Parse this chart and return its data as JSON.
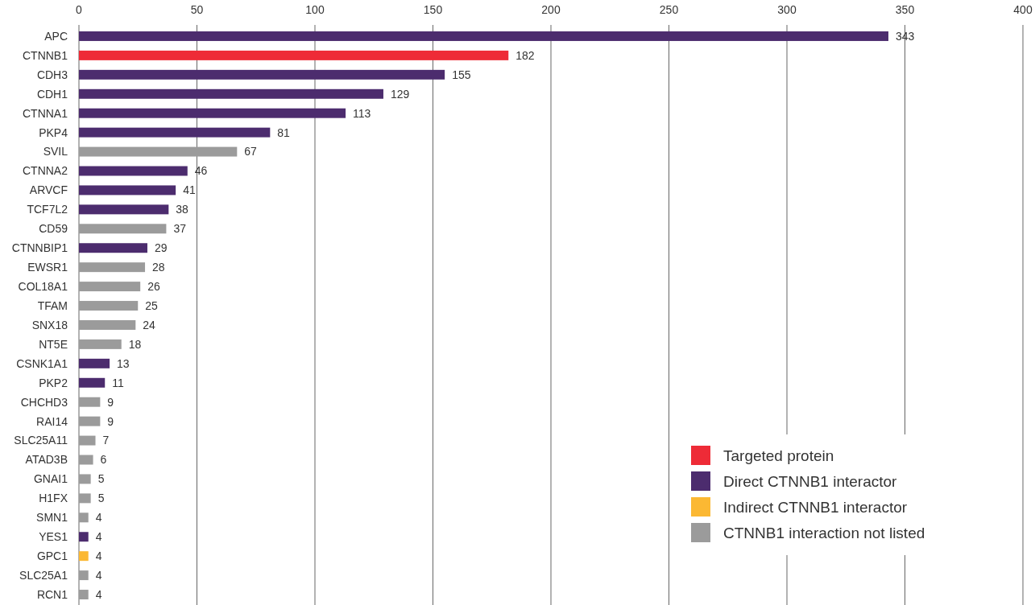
{
  "chart_data": {
    "type": "bar",
    "orientation": "horizontal",
    "stacked": true,
    "categories": [
      "APC",
      "CTNNB1",
      "CDH3",
      "CDH1",
      "CTNNA1",
      "PKP4",
      "SVIL",
      "CTNNA2",
      "ARVCF",
      "TCF7L2",
      "CD59",
      "CTNNBIP1",
      "EWSR1",
      "COL18A1",
      "TFAM",
      "SNX18",
      "NT5E",
      "CSNK1A1",
      "PKP2",
      "CHCHD3",
      "RAI14",
      "SLC25A11",
      "ATAD3B",
      "GNAI1",
      "H1FX",
      "SMN1",
      "YES1",
      "GPC1",
      "SLC25A1",
      "RCN1"
    ],
    "series": [
      {
        "name": "Targeted protein",
        "color": "#ee2b37",
        "values": [
          null,
          182,
          null,
          null,
          null,
          null,
          null,
          null,
          null,
          null,
          null,
          null,
          null,
          null,
          null,
          null,
          null,
          null,
          null,
          null,
          null,
          null,
          null,
          null,
          null,
          null,
          null,
          null,
          null,
          null
        ]
      },
      {
        "name": "Direct CTNNB1 interactor",
        "color": "#4c2c6e",
        "values": [
          343,
          null,
          155,
          129,
          113,
          81,
          null,
          46,
          41,
          38,
          null,
          29,
          null,
          null,
          null,
          null,
          null,
          13,
          11,
          null,
          null,
          null,
          null,
          null,
          null,
          null,
          4,
          null,
          null,
          null
        ]
      },
      {
        "name": "Indirect CTNNB1 interactor",
        "color": "#fbb833",
        "values": [
          null,
          null,
          null,
          null,
          null,
          null,
          null,
          null,
          null,
          null,
          null,
          null,
          null,
          null,
          null,
          null,
          null,
          null,
          null,
          null,
          null,
          null,
          null,
          null,
          null,
          null,
          null,
          4,
          null,
          null
        ]
      },
      {
        "name": "CTNNB1 interaction not listed",
        "color": "#9b9b9b",
        "values": [
          null,
          null,
          null,
          null,
          null,
          null,
          67,
          null,
          null,
          null,
          37,
          null,
          28,
          26,
          25,
          24,
          18,
          null,
          null,
          9,
          9,
          7,
          6,
          5,
          5,
          4,
          null,
          null,
          4,
          4
        ]
      }
    ],
    "xlim": [
      0,
      400
    ],
    "xticks": [
      0,
      50,
      100,
      150,
      200,
      250,
      300,
      350,
      400
    ],
    "grid": "x",
    "legend": "bottom right",
    "data_labels": true
  }
}
